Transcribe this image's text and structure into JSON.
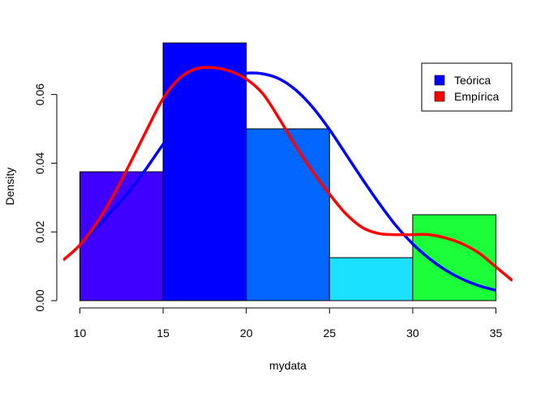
{
  "chart_data": {
    "type": "bar",
    "xlabel": "mydata",
    "ylabel": "Density",
    "xlim": [
      9,
      36
    ],
    "ylim": [
      0,
      0.075
    ],
    "bins": [
      {
        "x0": 10,
        "x1": 15,
        "density": 0.0375,
        "color": "#4000FF"
      },
      {
        "x0": 15,
        "x1": 20,
        "density": 0.075,
        "color": "#0000FF"
      },
      {
        "x0": 20,
        "x1": 25,
        "density": 0.05,
        "color": "#0066FF"
      },
      {
        "x0": 25,
        "x1": 30,
        "density": 0.0125,
        "color": "#1AE1FF"
      },
      {
        "x0": 30,
        "x1": 35,
        "density": 0.025,
        "color": "#1AFF3A"
      }
    ],
    "x_ticks": [
      10,
      15,
      20,
      25,
      30,
      35
    ],
    "y_ticks": [
      "0.00",
      "0.02",
      "0.04",
      "0.06"
    ],
    "series": [
      {
        "name": "Teórica",
        "type": "line",
        "color": "#0000FF",
        "x": [
          10,
          11,
          12,
          13,
          14,
          15,
          16,
          17,
          18,
          19,
          20,
          21,
          22,
          23,
          24,
          25,
          26,
          27,
          28,
          29,
          30,
          31,
          32,
          33,
          34,
          35
        ],
        "y": [
          0.0165,
          0.0212,
          0.0265,
          0.032,
          0.0385,
          0.0455,
          0.052,
          0.058,
          0.0625,
          0.0652,
          0.0662,
          0.066,
          0.0645,
          0.0612,
          0.0562,
          0.0498,
          0.0425,
          0.0352,
          0.0282,
          0.0218,
          0.0165,
          0.0122,
          0.0088,
          0.0062,
          0.0043,
          0.003
        ]
      },
      {
        "name": "Empírica",
        "type": "line",
        "color": "#FF0000",
        "x": [
          9,
          10,
          11,
          12,
          13,
          14,
          15,
          16,
          17,
          18,
          19,
          20,
          21,
          22,
          23,
          24,
          25,
          26,
          27,
          28,
          29,
          30,
          31,
          32,
          33,
          34,
          35,
          36
        ],
        "y": [
          0.0118,
          0.0162,
          0.0225,
          0.0305,
          0.0398,
          0.0495,
          0.0588,
          0.0648,
          0.0675,
          0.0678,
          0.0668,
          0.0645,
          0.0602,
          0.0528,
          0.0448,
          0.0375,
          0.031,
          0.0252,
          0.0212,
          0.0195,
          0.0192,
          0.0192,
          0.0192,
          0.0182,
          0.0165,
          0.0138,
          0.0098,
          0.0058
        ]
      }
    ],
    "legend": {
      "placement": "top-right",
      "entries": [
        {
          "label": "Teórica",
          "color": "#0000FF"
        },
        {
          "label": "Empírica",
          "color": "#FF0000"
        }
      ]
    }
  }
}
